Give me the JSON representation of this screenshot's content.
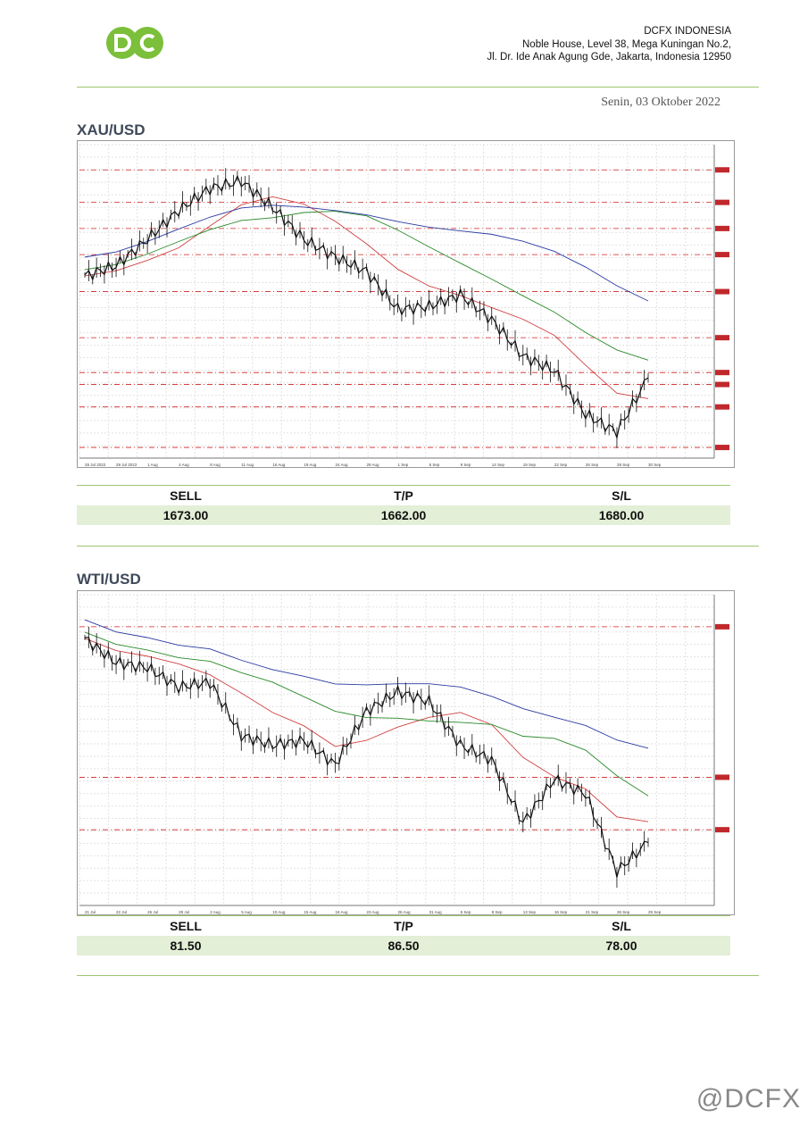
{
  "header": {
    "company_name": "DCFX INDONESIA",
    "address_line1": "Noble House, Level 38, Mega Kuningan No.2,",
    "address_line2": "Jl. Dr. Ide Anak Agung Gde, Jakarta, Indonesia 12950",
    "logo_text": "DC",
    "date": "Senin, 03 Oktober 2022"
  },
  "colors": {
    "brand_green": "#7bbf3a",
    "rule_green": "#9cc46f",
    "row_fill": "#e3efd6"
  },
  "sections": [
    {
      "title": "XAU/USD",
      "table": {
        "headers": [
          "SELL",
          "T/P",
          "S/L"
        ],
        "values": [
          "1673.00",
          "1662.00",
          "1680.00"
        ]
      }
    },
    {
      "title": "WTI/USD",
      "table": {
        "headers": [
          "SELL",
          "T/P",
          "S/L"
        ],
        "values": [
          "81.50",
          "86.50",
          "78.00"
        ]
      }
    }
  ],
  "watermark": "@DCFX",
  "chart_data": [
    {
      "type": "line",
      "title": "XAU/USD",
      "x": [
        "28 Jul 2022",
        "29 Jul 2022",
        "1 Aug",
        "4 Aug",
        "8 Aug",
        "11 Aug",
        "16 Aug",
        "19 Aug",
        "24 Aug",
        "29 Aug",
        "1 Sep",
        "6 Sep",
        "9 Sep",
        "14 Sep",
        "19 Sep",
        "22 Sep",
        "26 Sep",
        "28 Sep",
        "30 Sep"
      ],
      "series": [
        {
          "values": [
            1735,
            1742,
            1760,
            1780,
            1795,
            1800,
            1782,
            1760,
            1748,
            1738,
            1712,
            1714,
            1722,
            1705,
            1680,
            1670,
            1640,
            1628,
            1665
          ]
        }
      ],
      "ylim": [
        1610,
        1825
      ],
      "horizontal_levels": [
        1807.7,
        1785.4,
        1767.5,
        1749.6,
        1724.2,
        1692.6,
        1668.7,
        1660.5,
        1645.1,
        1617.3
      ],
      "grid": true
    },
    {
      "type": "line",
      "title": "WTI/USD",
      "x": [
        "21 Jul",
        "22 Jul",
        "26 Jul",
        "28 Jul",
        "2 Aug",
        "5 Aug",
        "10 Aug",
        "15 Aug",
        "18 Aug",
        "23 Aug",
        "26 Aug",
        "31 Aug",
        "5 Sep",
        "8 Sep",
        "13 Sep",
        "16 Sep",
        "21 Sep",
        "26 Sep",
        "29 Sep"
      ],
      "series": [
        {
          "values": [
            101.5,
            99.0,
            98.5,
            96.5,
            97.0,
            91.5,
            90.5,
            91.0,
            88.5,
            94.0,
            96.0,
            95.0,
            90.5,
            89.0,
            82.5,
            87.0,
            85.5,
            77.5,
            80.5
          ]
        }
      ],
      "ylim": [
        74,
        106
      ],
      "horizontal_levels": [
        102.7,
        87.2,
        81.8
      ],
      "grid": true
    }
  ]
}
